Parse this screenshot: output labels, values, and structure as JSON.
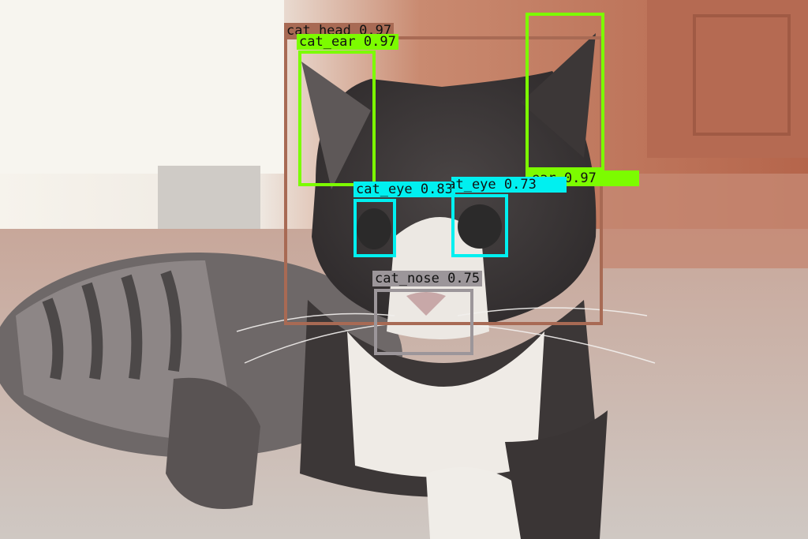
{
  "image": {
    "subject": "cat",
    "colors": {
      "background_left": "#f4f1ea",
      "background_right": "#b8604a",
      "floor": "#d9d3cc",
      "fur_dark": "#3a3636",
      "fur_white": "#eeebe6"
    }
  },
  "detections": [
    {
      "id": "head",
      "label": "cat_head 0.97",
      "color": "#a86a54"
    },
    {
      "id": "ear_left",
      "label": "cat_ear 0.97",
      "color": "#7cfc00"
    },
    {
      "id": "ear_right",
      "label": "cat_ear 0.97",
      "color": "#7cfc00"
    },
    {
      "id": "eye_left",
      "label": "cat_eye 0.83",
      "color": "#00f0f0"
    },
    {
      "id": "eye_right",
      "label": "cat_eye 0.73",
      "color": "#00f0f0"
    },
    {
      "id": "nose",
      "label": "cat_nose 0.75",
      "color": "#9c969a"
    }
  ]
}
